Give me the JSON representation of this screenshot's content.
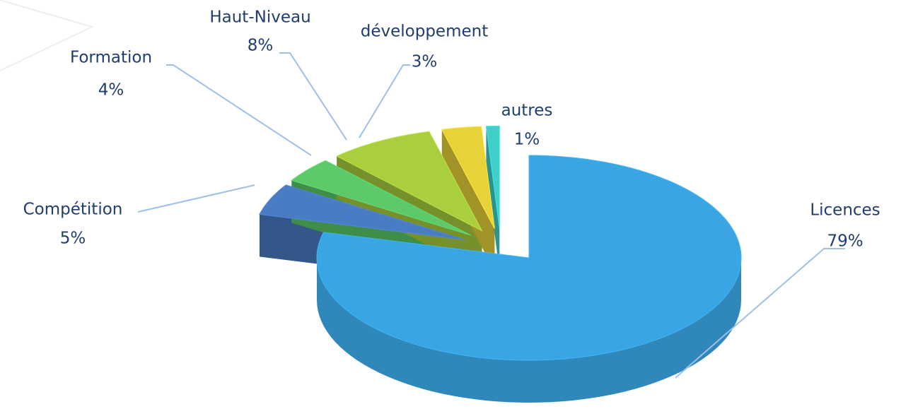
{
  "chart_data": {
    "type": "pie3d",
    "categories": [
      "Licences",
      "Compétition",
      "Formation",
      "Haut-Niveau",
      "développement",
      "autres"
    ],
    "values": [
      79,
      5,
      4,
      8,
      3,
      1
    ],
    "value_labels": [
      "79%",
      "5%",
      "4%",
      "8%",
      "3%",
      "1%"
    ],
    "colors": [
      "#3aa5e3",
      "#4a7cc4",
      "#5cc96a",
      "#a9cf3f",
      "#e8d23a",
      "#3fd0cc"
    ]
  }
}
